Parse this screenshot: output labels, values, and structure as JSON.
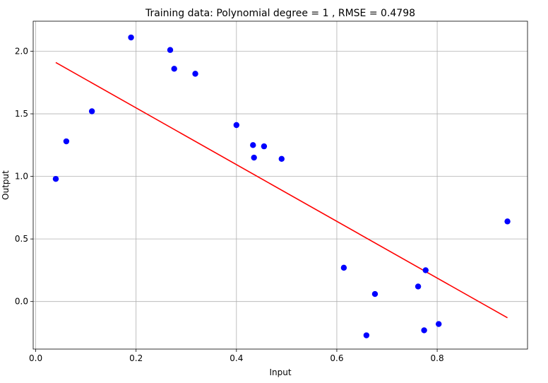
{
  "chart_data": {
    "type": "scatter",
    "title": "Training data: Polynomial degree = 1 , RMSE = 0.4798",
    "xlabel": "Input",
    "ylabel": "Output",
    "xlim": [
      -0.005,
      0.98
    ],
    "ylim": [
      -0.38,
      2.24
    ],
    "xticks": [
      0.0,
      0.2,
      0.4,
      0.6,
      0.8
    ],
    "xtick_labels": [
      "0.0",
      "0.2",
      "0.4",
      "0.6",
      "0.8"
    ],
    "yticks": [
      0.0,
      0.5,
      1.0,
      1.5,
      2.0
    ],
    "ytick_labels": [
      "0.0",
      "0.5",
      "1.0",
      "1.5",
      "2.0"
    ],
    "grid": true,
    "series": [
      {
        "kind": "points",
        "color": "#0000ff",
        "x": [
          0.04,
          0.061,
          0.112,
          0.19,
          0.268,
          0.276,
          0.318,
          0.4,
          0.433,
          0.435,
          0.455,
          0.49,
          0.614,
          0.659,
          0.676,
          0.762,
          0.774,
          0.777,
          0.803,
          0.94
        ],
        "y": [
          0.98,
          1.28,
          1.52,
          2.11,
          2.01,
          1.86,
          1.82,
          1.41,
          1.25,
          1.15,
          1.24,
          1.14,
          0.27,
          -0.27,
          0.06,
          0.12,
          -0.23,
          0.25,
          -0.18,
          0.64
        ]
      },
      {
        "kind": "fit-line",
        "color": "#ff0000",
        "x": [
          0.04,
          0.94
        ],
        "y": [
          1.91,
          -0.13
        ]
      }
    ]
  }
}
